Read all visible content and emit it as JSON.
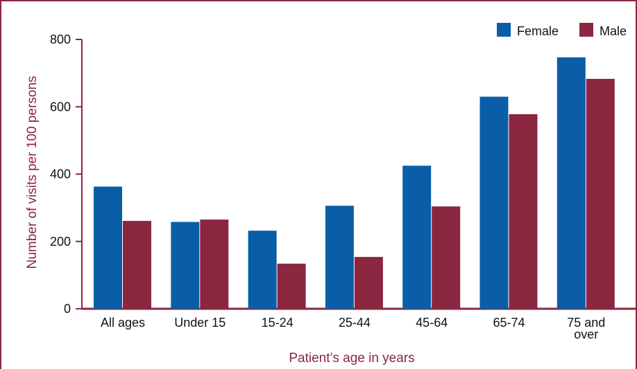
{
  "chart_data": {
    "type": "bar",
    "categories": [
      [
        "All ages"
      ],
      [
        "Under 15"
      ],
      [
        "15-24"
      ],
      [
        "25-44"
      ],
      [
        "45-64"
      ],
      [
        "65-74"
      ],
      [
        "75 and",
        "over"
      ]
    ],
    "series": [
      {
        "name": "Female",
        "values": [
          363,
          258,
          232,
          306,
          425,
          630,
          747
        ],
        "color": "#0a5ea8"
      },
      {
        "name": "Male",
        "values": [
          261,
          265,
          134,
          154,
          304,
          578,
          683
        ],
        "color": "#8b2641"
      }
    ],
    "title": "",
    "xlabel": "Patient’s age in years",
    "ylabel": "Number of visits per 100 persons",
    "ylim": [
      0,
      800
    ],
    "yticks": [
      0,
      200,
      400,
      600,
      800
    ],
    "grid": false,
    "legend": "top-right",
    "axis_color": "#8b2641"
  }
}
